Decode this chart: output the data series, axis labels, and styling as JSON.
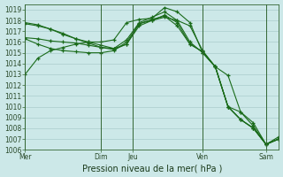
{
  "background_color": "#cce8e8",
  "grid_color": "#aacccc",
  "line_color": "#1a6b1a",
  "marker_color": "#1a6b1a",
  "xlabel": "Pression niveau de la mer( hPa )",
  "ylim": [
    1006,
    1019.5
  ],
  "yticks": [
    1006,
    1007,
    1008,
    1009,
    1010,
    1011,
    1012,
    1013,
    1014,
    1015,
    1016,
    1017,
    1018,
    1019
  ],
  "vline_color": "#336633",
  "series": [
    [
      1013.0,
      1014.5,
      1015.2,
      1015.5,
      1015.8,
      1016.0,
      1016.0,
      1016.2,
      1017.8,
      1018.1,
      1018.2,
      1019.2,
      1018.8,
      1017.8,
      1015.0,
      1013.7,
      1012.9,
      1009.5,
      1008.2,
      1006.5,
      1007.0
    ],
    [
      1016.4,
      1016.3,
      1016.1,
      1016.0,
      1015.9,
      1015.7,
      1015.5,
      1015.3,
      1015.8,
      1017.5,
      1018.0,
      1018.3,
      1018.0,
      1017.5,
      1015.2,
      1013.7,
      1010.0,
      1008.8,
      1008.0,
      1006.5,
      1007.0
    ],
    [
      1017.7,
      1017.5,
      1017.2,
      1016.8,
      1016.3,
      1016.0,
      1015.7,
      1015.4,
      1015.8,
      1017.7,
      1018.1,
      1018.4,
      1017.5,
      1015.8,
      1015.1,
      1013.7,
      1010.0,
      1008.8,
      1008.0,
      1006.5,
      1007.0
    ],
    [
      1017.8,
      1017.6,
      1017.2,
      1016.7,
      1016.3,
      1015.9,
      1015.5,
      1015.4,
      1016.2,
      1017.8,
      1018.3,
      1018.8,
      1018.0,
      1016.0,
      1015.0,
      1013.7,
      1010.0,
      1009.5,
      1008.5,
      1006.5,
      1007.2
    ],
    [
      1016.3,
      1015.8,
      1015.4,
      1015.2,
      1015.1,
      1015.0,
      1015.0,
      1015.2,
      1016.0,
      1017.7,
      1018.0,
      1018.5,
      1017.8,
      1015.8,
      1015.1,
      1013.7,
      1010.0,
      1008.8,
      1008.0,
      1006.5,
      1007.0
    ]
  ],
  "day_positions": [
    0.0,
    6.0,
    8.5,
    14.0,
    19.0
  ],
  "day_labels": [
    "Mer",
    "Dim",
    "Jeu",
    "Ven",
    "Sam"
  ],
  "vline_positions": [
    0.0,
    6.0,
    8.5,
    14.0,
    19.0
  ],
  "xlim": [
    0,
    20
  ],
  "n_points": 21,
  "title_fontsize": 7,
  "tick_fontsize": 5.5,
  "xlabel_fontsize": 7
}
